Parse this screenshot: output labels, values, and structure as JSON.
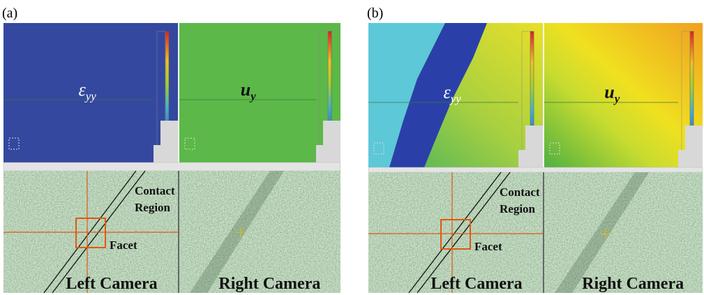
{
  "panels": [
    {
      "label": "(a)",
      "strain": {
        "symbol": "ε",
        "subscript": "yy"
      },
      "displacement": {
        "symbol": "u",
        "subscript": "y"
      },
      "contact_label": [
        "Contact",
        "Region"
      ],
      "facet_label": "Facet",
      "left_camera": "Left Camera",
      "right_camera": "Right Camera"
    },
    {
      "label": "(b)",
      "strain": {
        "symbol": "ε",
        "subscript": "yy"
      },
      "displacement": {
        "symbol": "u",
        "subscript": "y"
      },
      "contact_label": [
        "Contact",
        "Region"
      ],
      "facet_label": "Facet",
      "left_camera": "Left Camera",
      "right_camera": "Right Camera"
    }
  ]
}
